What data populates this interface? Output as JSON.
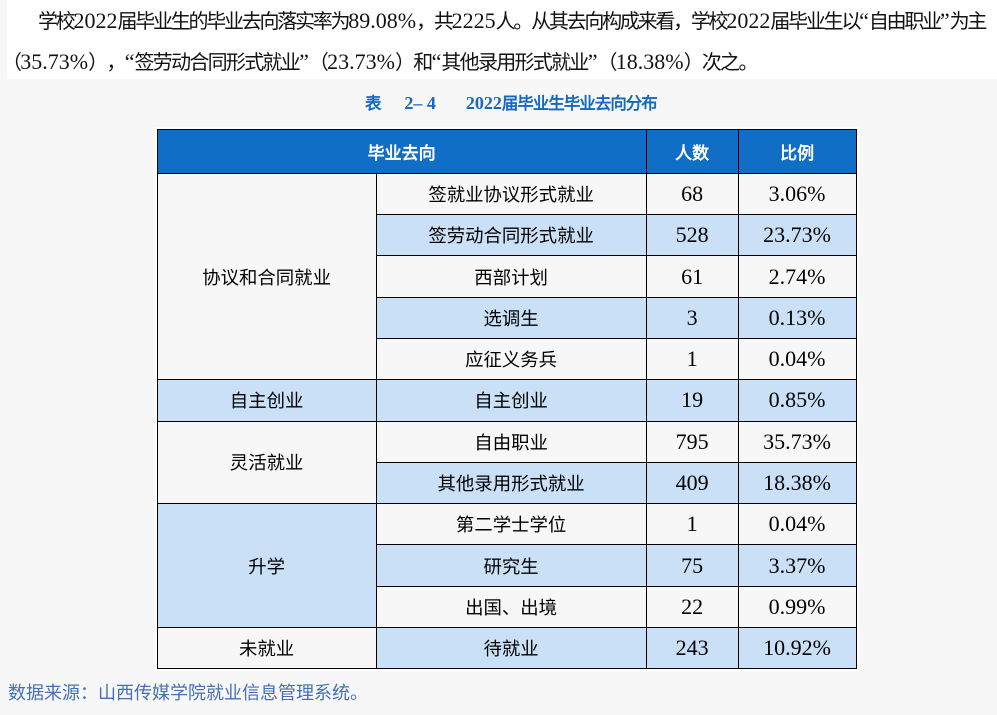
{
  "paragraph": {
    "line1": "学校2022届毕业生的毕业去向落实率为89.08%，共2225人。从其去向构成来看，学校2022届毕业生以“自由职业”为主",
    "line2": "（35.73%），“签劳动合同形式就业”（23.73%）和“其他录用形式就业”（18.38%）次之。"
  },
  "caption": {
    "label": "表",
    "number": "2– 4",
    "title": "2022届毕业生毕业去向分布"
  },
  "table": {
    "headers": {
      "destination": "毕业去向",
      "count": "人数",
      "ratio": "比例"
    },
    "groups": [
      {
        "category": "协议和合同就业",
        "category_shade": "white",
        "rows": [
          {
            "item": "签就业协议形式就业",
            "count": "68",
            "ratio": "3.06%",
            "shade": "white"
          },
          {
            "item": "签劳动合同形式就业",
            "count": "528",
            "ratio": "23.73%",
            "shade": "blue"
          },
          {
            "item": "西部计划",
            "count": "61",
            "ratio": "2.74%",
            "shade": "white"
          },
          {
            "item": "选调生",
            "count": "3",
            "ratio": "0.13%",
            "shade": "blue"
          },
          {
            "item": "应征义务兵",
            "count": "1",
            "ratio": "0.04%",
            "shade": "white"
          }
        ]
      },
      {
        "category": "自主创业",
        "category_shade": "blue",
        "rows": [
          {
            "item": "自主创业",
            "count": "19",
            "ratio": "0.85%",
            "shade": "blue"
          }
        ]
      },
      {
        "category": "灵活就业",
        "category_shade": "white",
        "rows": [
          {
            "item": "自由职业",
            "count": "795",
            "ratio": "35.73%",
            "shade": "white"
          },
          {
            "item": "其他录用形式就业",
            "count": "409",
            "ratio": "18.38%",
            "shade": "blue"
          }
        ]
      },
      {
        "category": "升学",
        "category_shade": "blue",
        "rows": [
          {
            "item": "第二学士学位",
            "count": "1",
            "ratio": "0.04%",
            "shade": "white"
          },
          {
            "item": "研究生",
            "count": "75",
            "ratio": "3.37%",
            "shade": "blue"
          },
          {
            "item": "出国、出境",
            "count": "22",
            "ratio": "0.99%",
            "shade": "white"
          }
        ]
      },
      {
        "category": "未就业",
        "category_shade": "white",
        "rows": [
          {
            "item": "待就业",
            "count": "243",
            "ratio": "10.92%",
            "shade": "blue"
          }
        ]
      }
    ]
  },
  "source_note": "数据来源：山西传媒学院就业信息管理系统。",
  "colors": {
    "page_background": "#f7f7f8",
    "paragraph_background": "#ffffff",
    "header_background": "#106ec6",
    "header_text": "#ffffff",
    "row_shade_blue": "#c9e0f7",
    "caption_blue": "#1569c0",
    "source_note_blue": "#4570b2",
    "table_border": "#000000",
    "table_text": "#000000",
    "body_text": "#121212"
  }
}
